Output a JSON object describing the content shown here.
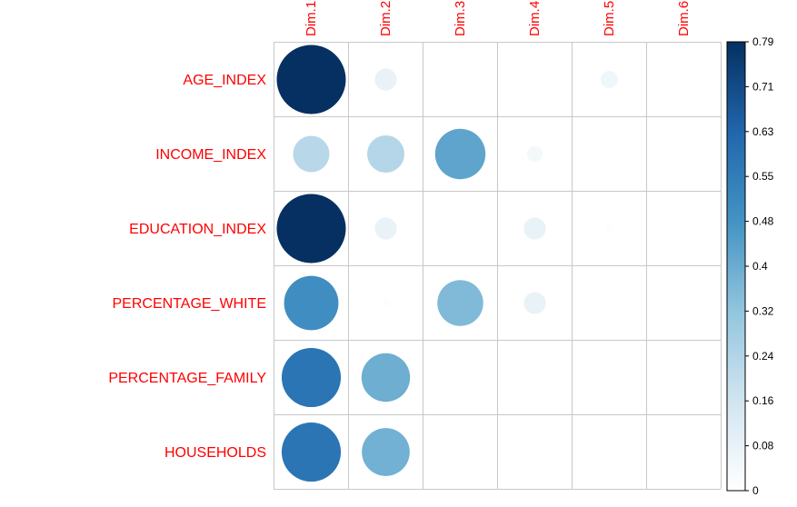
{
  "chart_data": {
    "type": "heatmap",
    "title": "",
    "columns": [
      "Dim.1",
      "Dim.2",
      "Dim.3",
      "Dim.4",
      "Dim.5",
      "Dim.6"
    ],
    "rows": [
      "AGE_INDEX",
      "INCOME_INDEX",
      "EDUCATION_INDEX",
      "PERCENTAGE_WHITE",
      "PERCENTAGE_FAMILY",
      "HOUSEHOLDS"
    ],
    "values": [
      [
        0.79,
        0.08,
        0.0,
        0.0,
        0.05,
        0.0
      ],
      [
        0.22,
        0.23,
        0.42,
        0.04,
        0.0,
        0.0
      ],
      [
        0.79,
        0.08,
        0.0,
        0.08,
        0.01,
        0.0
      ],
      [
        0.49,
        0.01,
        0.35,
        0.08,
        0.0,
        0.0
      ],
      [
        0.58,
        0.39,
        0.0,
        0.0,
        0.0,
        0.0
      ],
      [
        0.58,
        0.38,
        0.0,
        0.0,
        0.0,
        0.0
      ]
    ],
    "value_range": [
      0,
      0.79
    ],
    "colorbar_ticks": [
      "0",
      "0.08",
      "0.16",
      "0.24",
      "0.32",
      "0.4",
      "0.48",
      "0.55",
      "0.63",
      "0.71",
      "0.79"
    ],
    "label_color": "#ff0000",
    "grid_color": "#c8c8c8",
    "grid": true,
    "legend_position": "right",
    "palette": [
      "#ffffff",
      "#d1e5f0",
      "#92c5de",
      "#4393c3",
      "#2166ac",
      "#053061"
    ]
  }
}
